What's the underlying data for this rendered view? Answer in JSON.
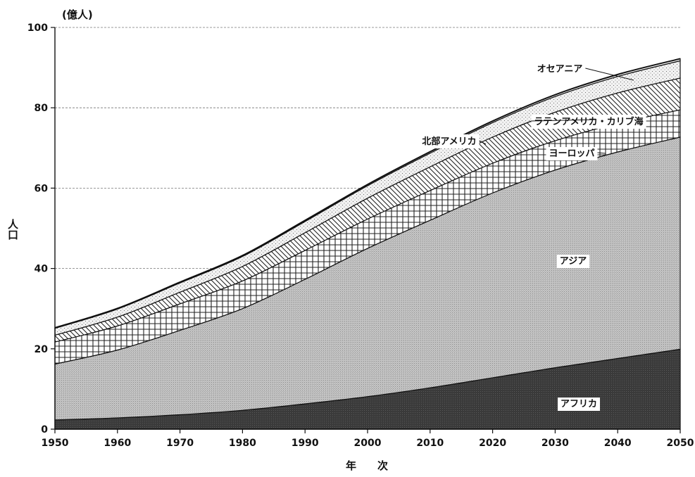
{
  "chart_data": {
    "type": "area",
    "stacked": true,
    "unit_label": "(億人)",
    "xlabel": "年　　次",
    "ylabel": "人口",
    "xlim": [
      1950,
      2050
    ],
    "ylim": [
      0,
      100
    ],
    "x_ticks": [
      1950,
      1960,
      1970,
      1980,
      1990,
      2000,
      2010,
      2020,
      2030,
      2040,
      2050
    ],
    "y_ticks": [
      0,
      20,
      40,
      60,
      80,
      100
    ],
    "grid": "horizontal dashed",
    "x": [
      1950,
      1960,
      1970,
      1980,
      1990,
      2000,
      2010,
      2020,
      2030,
      2040,
      2050
    ],
    "series": [
      {
        "name": "アフリカ",
        "fill": "dark",
        "values": [
          2.3,
          2.8,
          3.6,
          4.7,
          6.3,
          8.1,
          10.3,
          12.8,
          15.3,
          17.6,
          19.9
        ]
      },
      {
        "name": "アジア",
        "fill": "stipple-gray",
        "values": [
          13.9,
          16.9,
          21.0,
          25.3,
          31.0,
          36.9,
          41.7,
          46.0,
          49.2,
          51.4,
          52.8
        ]
      },
      {
        "name": "ヨーロッパ",
        "fill": "crosshatch",
        "values": [
          5.5,
          6.0,
          6.6,
          6.9,
          7.2,
          7.3,
          7.4,
          7.4,
          7.3,
          7.1,
          6.8
        ]
      },
      {
        "name": "ラテンアメリカ・カリブ海",
        "fill": "diagonal-hatch",
        "values": [
          1.7,
          2.2,
          2.9,
          3.6,
          4.4,
          5.2,
          5.9,
          6.5,
          7.1,
          7.6,
          7.9
        ]
      },
      {
        "name": "北部アメリカ",
        "fill": "light-dots",
        "values": [
          1.7,
          2.0,
          2.3,
          2.5,
          2.8,
          3.1,
          3.4,
          3.6,
          3.9,
          4.1,
          4.3
        ]
      },
      {
        "name": "オセアニア",
        "fill": "white",
        "values": [
          0.13,
          0.16,
          0.2,
          0.23,
          0.27,
          0.31,
          0.36,
          0.4,
          0.45,
          0.49,
          0.52
        ]
      }
    ]
  }
}
